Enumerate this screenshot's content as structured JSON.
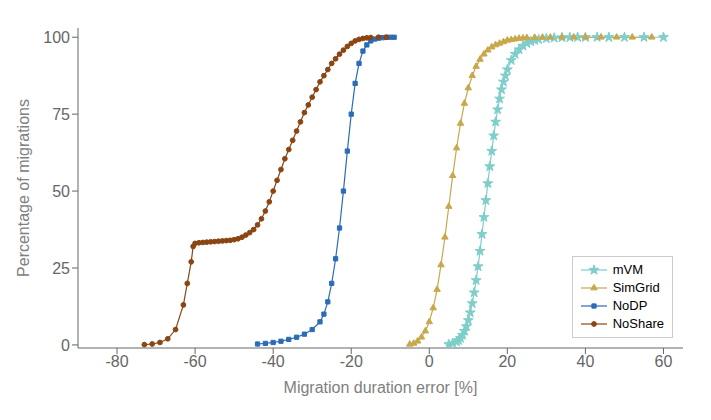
{
  "chart_data": {
    "type": "line",
    "xlabel": "Migration duration error [%]",
    "ylabel": "Percentage of migrations",
    "xlim": [
      -90,
      65
    ],
    "ylim": [
      -1,
      103
    ],
    "xticks": [
      -80,
      -60,
      -40,
      -20,
      0,
      20,
      40,
      60
    ],
    "yticks": [
      0,
      25,
      50,
      75,
      100
    ],
    "grid": false,
    "legend": "lower right",
    "series": [
      {
        "name": "mVM",
        "color": "#7ececa",
        "marker": "star",
        "x": [
          5,
          6,
          7,
          7.5,
          8,
          8.5,
          9,
          9.5,
          10,
          10.5,
          11,
          11.5,
          12,
          12.5,
          13,
          13.5,
          14,
          14.5,
          15,
          15.5,
          16,
          16.5,
          17,
          17.5,
          18,
          18.5,
          19,
          19.5,
          20,
          21,
          22,
          23,
          24,
          25,
          26,
          27,
          28,
          30,
          32,
          34,
          36,
          38,
          40,
          43,
          46,
          50,
          55,
          60
        ],
        "values": [
          0.2,
          0.5,
          1.0,
          1.5,
          2.2,
          3.2,
          4.5,
          6.0,
          8.0,
          10.5,
          13.5,
          17.0,
          21.0,
          25.5,
          30.5,
          36.0,
          41.5,
          47.0,
          52.5,
          58.0,
          63.0,
          68.0,
          72.5,
          76.5,
          80.0,
          83.0,
          85.5,
          87.5,
          89.5,
          92.5,
          94.5,
          96.0,
          97.2,
          98.0,
          98.6,
          99.0,
          99.3,
          99.6,
          99.8,
          99.9,
          99.95,
          100.0,
          100.0,
          100.0,
          100.0,
          100.0,
          100.0,
          100.0
        ]
      },
      {
        "name": "SimGrid",
        "color": "#c8a84b",
        "marker": "triangle",
        "x": [
          -5,
          -4,
          -3,
          -2,
          -1,
          0,
          1,
          2,
          3,
          4,
          5,
          6,
          7,
          8,
          9,
          10,
          11,
          12,
          13,
          14,
          15,
          16,
          17,
          18,
          19,
          20,
          21,
          22,
          23,
          24,
          25,
          27,
          29,
          31,
          34,
          37,
          40,
          44,
          48,
          52,
          57
        ],
        "values": [
          0.2,
          0.5,
          1.2,
          2.5,
          4.5,
          7.5,
          12.0,
          18.0,
          26.0,
          35.0,
          45.0,
          55.0,
          64.0,
          72.0,
          78.5,
          83.5,
          87.5,
          90.5,
          92.8,
          94.5,
          95.8,
          96.8,
          97.5,
          98.0,
          98.5,
          99.0,
          99.2,
          99.4,
          99.6,
          99.7,
          99.8,
          99.9,
          99.95,
          99.97,
          100.0,
          100.0,
          100.0,
          100.0,
          100.0,
          100.0,
          100.0
        ]
      },
      {
        "name": "NoDP",
        "color": "#2b6cb7",
        "marker": "square",
        "x": [
          -44,
          -42,
          -40,
          -38,
          -36,
          -34,
          -32,
          -30,
          -28,
          -27,
          -26,
          -25,
          -24,
          -23,
          -22,
          -21,
          -20,
          -19,
          -18,
          -17,
          -16,
          -15,
          -14,
          -13,
          -12,
          -11,
          -10,
          -9
        ],
        "values": [
          0.3,
          0.5,
          0.8,
          1.2,
          1.8,
          2.5,
          3.5,
          5.0,
          7.5,
          10.0,
          14.0,
          20.0,
          28.0,
          38.0,
          50.0,
          63.0,
          75.0,
          85.0,
          91.5,
          95.5,
          97.5,
          98.8,
          99.4,
          99.7,
          99.85,
          99.95,
          100.0,
          100.0
        ]
      },
      {
        "name": "NoShare",
        "color": "#8b4513",
        "marker": "circle",
        "x": [
          -73,
          -71,
          -69,
          -67,
          -65,
          -63,
          -62,
          -61,
          -60.5,
          -60,
          -59,
          -58,
          -57,
          -56,
          -55,
          -54,
          -53,
          -52,
          -51,
          -50,
          -49,
          -48,
          -47,
          -46,
          -45,
          -44,
          -43,
          -42,
          -41,
          -40,
          -39,
          -38,
          -37,
          -36,
          -35,
          -34,
          -33,
          -32,
          -31,
          -30,
          -29,
          -28,
          -27,
          -26,
          -25,
          -24,
          -23,
          -22,
          -21,
          -20,
          -19,
          -18,
          -17,
          -16,
          -15,
          -13,
          -11
        ],
        "values": [
          0.1,
          0.3,
          0.8,
          2.0,
          5.0,
          13.0,
          20.0,
          27.0,
          32.0,
          33.0,
          33.2,
          33.3,
          33.4,
          33.5,
          33.6,
          33.7,
          33.8,
          33.9,
          34.0,
          34.2,
          34.5,
          35.0,
          35.7,
          36.5,
          37.5,
          39.0,
          41.0,
          43.5,
          46.5,
          50.0,
          53.5,
          57.0,
          60.5,
          63.5,
          66.5,
          69.5,
          72.5,
          75.5,
          78.0,
          80.5,
          83.0,
          85.5,
          87.5,
          89.5,
          91.5,
          93.0,
          94.5,
          95.8,
          97.0,
          98.0,
          98.8,
          99.3,
          99.6,
          99.8,
          99.9,
          100.0,
          100.0
        ]
      }
    ]
  }
}
